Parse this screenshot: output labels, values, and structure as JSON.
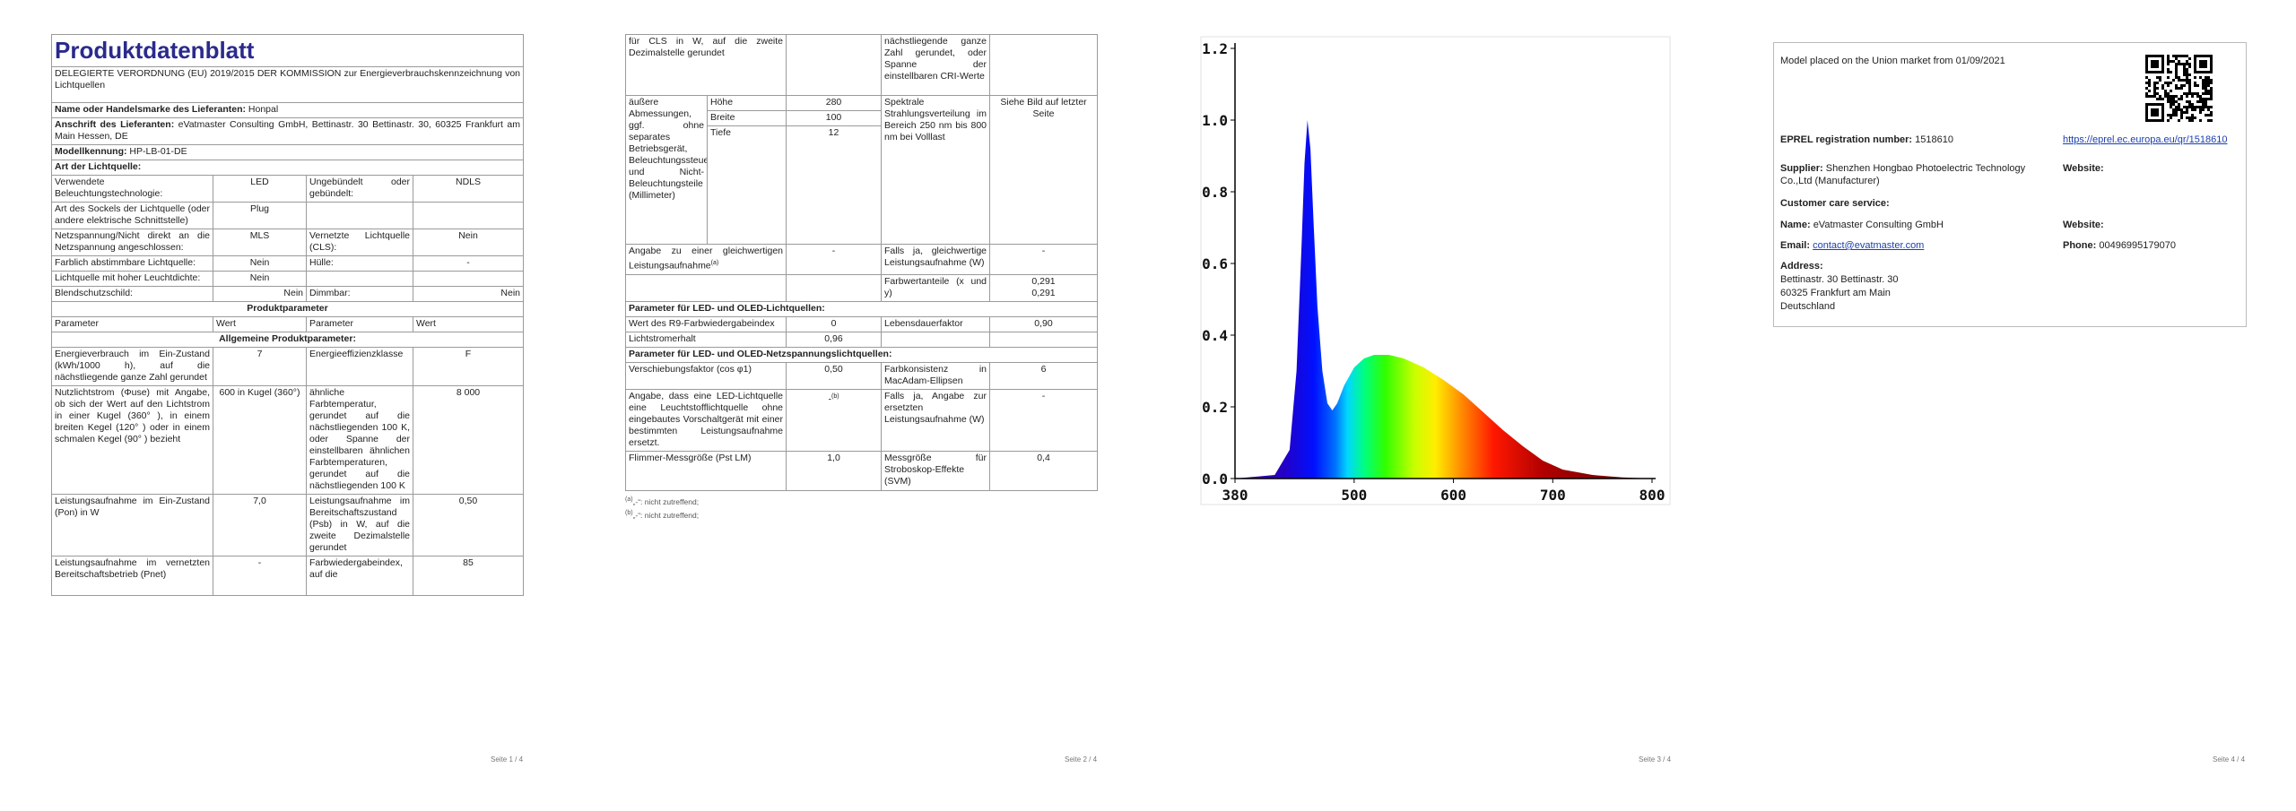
{
  "pages": [
    {
      "title": "Produktdatenblatt",
      "regulation": "DELEGIERTE VERORDNUNG (EU) 2019/2015 DER KOMMISSION zur Energieverbrauchskennzeichnung von Lichtquellen",
      "fields": [
        {
          "label": "Name oder Handelsmarke des Lieferanten:",
          "value": "Honpal"
        },
        {
          "label": "Anschrift des Lieferanten:",
          "value": "eVatmaster Consulting GmbH, Bettinastr. 30 Bettinastr. 30, 60325 Frankfurt am Main Hessen, DE"
        },
        {
          "label": "Modellkennung:",
          "value": "HP-LB-01-DE"
        }
      ],
      "source_heading": "Art der Lichtquelle:",
      "source_rows": [
        [
          "Verwendete Beleuchtungstechnologie:",
          "LED",
          "Ungebündelt oder gebündelt:",
          "NDLS"
        ],
        [
          "Art des Sockels der Lichtquelle (oder andere elektrische Schnittstelle)",
          "Plug"
        ],
        [
          "Netzspannung/Nicht direkt an die Netzspannung angeschlossen:",
          "MLS",
          "Vernetzte Lichtquelle (CLS):",
          "Nein"
        ],
        [
          "Farblich abstimmbare Lichtquelle:",
          "Nein",
          "Hülle:",
          "-"
        ],
        [
          "Lichtquelle mit hoher Leuchtdichte:",
          "Nein"
        ],
        [
          "Blendschutzschild:",
          "Nein",
          "Dimmbar:",
          "Nein"
        ]
      ],
      "section": "Produktparameter",
      "header": [
        "Parameter",
        "Wert",
        "Parameter",
        "Wert"
      ],
      "subsection": "Allgemeine Produktparameter:",
      "param_rows": [
        [
          "Energieverbrauch im Ein-Zustand (kWh/1000 h), auf die nächstliegende ganze Zahl gerundet",
          "7",
          "Energieeffizienzklasse",
          "F"
        ],
        [
          "Nutzlichtstrom (Φuse) mit Angabe, ob sich der Wert auf den Lichtstrom in einer Kugel (360° ), in einem breiten Kegel (120° ) oder in einem schmalen Kegel (90° ) bezieht",
          "600 in Kugel (360°)",
          "ähnliche Farbtemperatur, gerundet auf die nächstliegenden 100 K, oder Spanne der einstellbaren ähnlichen Farbtemperaturen, gerundet auf die nächstliegenden 100 K",
          "8 000"
        ],
        [
          "Leistungsaufnahme im Ein-Zustand (Pon) in W",
          "7,0",
          "Leistungsaufnahme im Bereitschaftszustand (Psb) in W, auf die zweite Dezimalstelle gerundet",
          "0,50"
        ],
        [
          "Leistungsaufnahme im vernetzten Bereitschaftsbetrieb (Pnet)",
          "-",
          "Farbwiedergabeindex, auf die",
          "85"
        ]
      ],
      "footer": "Seite 1 / 4"
    },
    {
      "rows": [
        [
          "für CLS in W, auf die zweite Dezimalstelle gerundet",
          "nächstliegende ganze Zahl gerundet, oder Spanne der einstellbaren CRI-Werte"
        ],
        [
          "äußere Abmessungen, ggf. ohne separates Betriebsgerät, Beleuchtungssteuerungsteile und Nicht-Beleuchtungsteile (Millimeter)",
          "Höhe",
          "280",
          "Spektrale Strahlungsverteilung im Bereich 250 nm bis 800 nm bei Volllast",
          "Siehe Bild auf letzter Seite"
        ],
        [
          "Breite",
          "100"
        ],
        [
          "Tiefe",
          "12"
        ],
        [
          "Angabe zu einer gleichwertigen Leistungsaufnahme",
          "-",
          "Falls ja, gleichwertige Leistungsaufnahme (W)",
          "-"
        ],
        [
          "Farbwertanteile (x und y)",
          "0,291",
          "0,291"
        ],
        [
          "Parameter für LED- und OLED-Lichtquellen:"
        ],
        [
          "Wert des R9-Farbwiedergabeindex",
          "0",
          "Lebensdauerfaktor",
          "0,90"
        ],
        [
          "Lichtstromerhalt",
          "0,96"
        ],
        [
          "Parameter für LED- und OLED-Netzspannungslichtquellen:"
        ],
        [
          "Verschiebungsfaktor (cos φ1)",
          "0,50",
          "Farbkonsistenz in MacAdam-Ellipsen",
          "6"
        ],
        [
          "Angabe, dass eine LED-Lichtquelle eine Leuchtstofflichtquelle ohne eingebautes Vorschaltgerät mit einer bestimmten Leistungsaufnahme ersetzt.",
          "-",
          "Falls ja, Angabe zur ersetzten Leistungsaufnahme (W)",
          "-"
        ],
        [
          "Flimmer-Messgröße (Pst LM)",
          "1,0",
          "Messgröße für Stroboskop-Effekte (SVM)",
          "0,4"
        ]
      ],
      "refs": [
        "(a)",
        "(b)"
      ],
      "footnotes": [
        {
          "mark": "(a)",
          "text": "„-“: nicht zutreffend;"
        },
        {
          "mark": "(b)",
          "text": "„-“: nicht zutreffend;"
        }
      ],
      "footer": "Seite 2 / 4"
    },
    {
      "spectrum": {
        "type": "area",
        "x": [
          380,
          420,
          435,
          442,
          447,
          450,
          453,
          456,
          459,
          463,
          468,
          473,
          478,
          483,
          490,
          500,
          510,
          520,
          535,
          550,
          570,
          590,
          610,
          630,
          650,
          670,
          690,
          710,
          740,
          770,
          800
        ],
        "values": [
          0,
          0.01,
          0.08,
          0.3,
          0.65,
          0.88,
          1.0,
          0.92,
          0.72,
          0.48,
          0.3,
          0.21,
          0.19,
          0.21,
          0.26,
          0.31,
          0.335,
          0.345,
          0.345,
          0.335,
          0.31,
          0.275,
          0.235,
          0.185,
          0.135,
          0.09,
          0.05,
          0.025,
          0.01,
          0.003,
          0
        ],
        "xlim": [
          380,
          800
        ],
        "ylim": [
          0,
          1.2
        ],
        "xticks": [
          380,
          500,
          600,
          700,
          800
        ],
        "yticks": [
          {
            "value": 0,
            "label": "0.0"
          },
          {
            "value": 0.2,
            "label": "0.2"
          },
          {
            "value": 0.4,
            "label": "0.4"
          },
          {
            "value": 0.6,
            "label": "0.6"
          },
          {
            "value": 0.8,
            "label": "0.8"
          },
          {
            "value": 1,
            "label": "1.0"
          },
          {
            "value": 1.2,
            "label": "1.2"
          }
        ]
      },
      "footer": "Seite 3 / 4"
    },
    {
      "placed": "Model placed on the Union market from 01/09/2021",
      "eprel": {
        "label": "EPREL registration number:",
        "value": "1518610",
        "link": "https://eprel.ec.europa.eu/qr/1518610"
      },
      "supplier": {
        "label": "Supplier:",
        "value": "Shenzhen Hongbao Photoelectric Technology Co.,Ltd (Manufacturer)",
        "website": "Website:"
      },
      "customer_care": "Customer care service:",
      "name": {
        "label": "Name:",
        "value": "eVatmaster Consulting GmbH",
        "website": "Website:"
      },
      "email": {
        "label": "Email:",
        "value": "contact@evatmaster.com",
        "phone_label": "Phone:",
        "phone": "00496995179070"
      },
      "address": {
        "label": "Address:",
        "lines": [
          "Bettinastr. 30 Bettinastr. 30",
          "60325 Frankfurt am Main",
          "Deutschland"
        ]
      },
      "footer": "Seite 4 / 4"
    }
  ]
}
